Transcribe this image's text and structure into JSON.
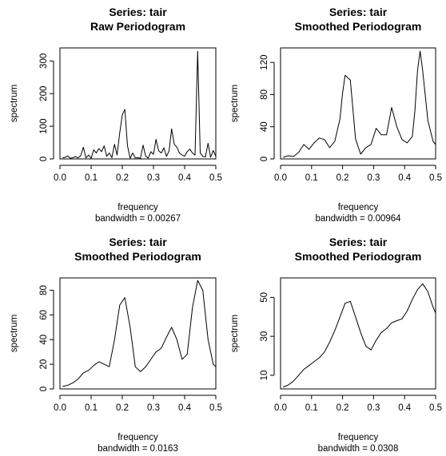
{
  "chart_data": [
    {
      "type": "line",
      "title": "Series: tair",
      "subtitle": "Raw Periodogram",
      "xlabel": "frequency",
      "sublabel": "bandwidth = 0.00267",
      "ylabel": "spectrum",
      "xlim": [
        0,
        0.5
      ],
      "ylim": [
        0,
        340
      ],
      "xticks": [
        "0.0",
        "0.1",
        "0.2",
        "0.3",
        "0.4",
        "0.5"
      ],
      "yticks": [
        0,
        100,
        200,
        300
      ],
      "grid": false,
      "legend": "none",
      "x": [
        0.00833,
        0.01667,
        0.025,
        0.03333,
        0.04167,
        0.05,
        0.05833,
        0.06667,
        0.075,
        0.08333,
        0.09167,
        0.1,
        0.10833,
        0.11667,
        0.125,
        0.13333,
        0.14167,
        0.15,
        0.15833,
        0.16667,
        0.175,
        0.18333,
        0.19167,
        0.2,
        0.20833,
        0.21667,
        0.225,
        0.23333,
        0.24167,
        0.25,
        0.25833,
        0.26667,
        0.275,
        0.28333,
        0.29167,
        0.3,
        0.30833,
        0.31667,
        0.325,
        0.33333,
        0.34167,
        0.35,
        0.35833,
        0.36667,
        0.375,
        0.38333,
        0.39167,
        0.4,
        0.40833,
        0.41667,
        0.425,
        0.43333,
        0.44167,
        0.45,
        0.45833,
        0.46667,
        0.475,
        0.48333,
        0.49167,
        0.5
      ],
      "y": [
        3,
        5,
        9,
        2,
        4,
        7,
        3,
        10,
        36,
        3,
        12,
        2,
        28,
        18,
        32,
        22,
        40,
        8,
        18,
        4,
        45,
        12,
        80,
        135,
        152,
        40,
        2,
        18,
        3,
        4,
        2,
        42,
        8,
        3,
        22,
        14,
        60,
        25,
        18,
        34,
        8,
        24,
        92,
        45,
        36,
        18,
        12,
        8,
        22,
        30,
        18,
        12,
        330,
        18,
        8,
        6,
        48,
        5,
        26,
        8
      ]
    },
    {
      "type": "line",
      "title": "Series: tair",
      "subtitle": "Smoothed Periodogram",
      "xlabel": "frequency",
      "sublabel": "bandwidth = 0.00964",
      "ylabel": "spectrum",
      "xlim": [
        0,
        0.5
      ],
      "ylim": [
        0,
        138
      ],
      "xticks": [
        "0.0",
        "0.1",
        "0.2",
        "0.3",
        "0.4",
        "0.5"
      ],
      "yticks": [
        0,
        40,
        80,
        120
      ],
      "grid": false,
      "legend": "none",
      "x": [
        0.00833,
        0.025,
        0.04167,
        0.05833,
        0.075,
        0.09167,
        0.10833,
        0.125,
        0.14167,
        0.15833,
        0.175,
        0.19167,
        0.2,
        0.20833,
        0.225,
        0.24167,
        0.25833,
        0.275,
        0.29167,
        0.30833,
        0.325,
        0.34167,
        0.35833,
        0.375,
        0.39167,
        0.40833,
        0.425,
        0.43333,
        0.44167,
        0.45,
        0.45833,
        0.475,
        0.49167,
        0.5
      ],
      "y": [
        2,
        4,
        3,
        8,
        18,
        12,
        20,
        26,
        24,
        14,
        22,
        50,
        82,
        104,
        98,
        25,
        6,
        14,
        18,
        38,
        30,
        30,
        64,
        40,
        24,
        20,
        28,
        60,
        110,
        134,
        110,
        48,
        22,
        18
      ]
    },
    {
      "type": "line",
      "title": "Series: tair",
      "subtitle": "Smoothed Periodogram",
      "xlabel": "frequency",
      "sublabel": "bandwidth = 0.0163",
      "ylabel": "spectrum",
      "xlim": [
        0,
        0.5
      ],
      "ylim": [
        0,
        90
      ],
      "xticks": [
        "0.0",
        "0.1",
        "0.2",
        "0.3",
        "0.4",
        "0.5"
      ],
      "yticks": [
        0,
        20,
        40,
        60,
        80
      ],
      "grid": false,
      "legend": "none",
      "x": [
        0.00833,
        0.025,
        0.04167,
        0.05833,
        0.075,
        0.09167,
        0.10833,
        0.125,
        0.14167,
        0.15833,
        0.175,
        0.19167,
        0.20833,
        0.225,
        0.24167,
        0.25833,
        0.275,
        0.29167,
        0.30833,
        0.325,
        0.34167,
        0.35833,
        0.375,
        0.39167,
        0.40833,
        0.425,
        0.44167,
        0.45833,
        0.475,
        0.49167,
        0.5
      ],
      "y": [
        2,
        3,
        5,
        8,
        13,
        15,
        19,
        22,
        20,
        18,
        40,
        68,
        74,
        50,
        18,
        14,
        18,
        24,
        30,
        33,
        42,
        50,
        40,
        24,
        28,
        66,
        88,
        80,
        40,
        20,
        18
      ]
    },
    {
      "type": "line",
      "title": "Series: tair",
      "subtitle": "Smoothed Periodogram",
      "xlabel": "frequency",
      "sublabel": "bandwidth = 0.0308",
      "ylabel": "spectrum",
      "xlim": [
        0,
        0.5
      ],
      "ylim": [
        3,
        60
      ],
      "xticks": [
        "0.0",
        "0.1",
        "0.2",
        "0.3",
        "0.4",
        "0.5"
      ],
      "yticks": [
        10,
        30,
        50
      ],
      "grid": false,
      "legend": "none",
      "x": [
        0.00833,
        0.025,
        0.04167,
        0.05833,
        0.075,
        0.09167,
        0.10833,
        0.125,
        0.14167,
        0.15833,
        0.175,
        0.19167,
        0.20833,
        0.225,
        0.24167,
        0.25833,
        0.275,
        0.29167,
        0.30833,
        0.325,
        0.34167,
        0.35833,
        0.375,
        0.39167,
        0.40833,
        0.425,
        0.44167,
        0.45833,
        0.475,
        0.49167,
        0.5
      ],
      "y": [
        4,
        5,
        7,
        10,
        13,
        15,
        17,
        19,
        22,
        27,
        33,
        40,
        47,
        48,
        40,
        32,
        25,
        23,
        28,
        32,
        34,
        37,
        38,
        39,
        43,
        49,
        54,
        57,
        53,
        45,
        42
      ]
    }
  ]
}
